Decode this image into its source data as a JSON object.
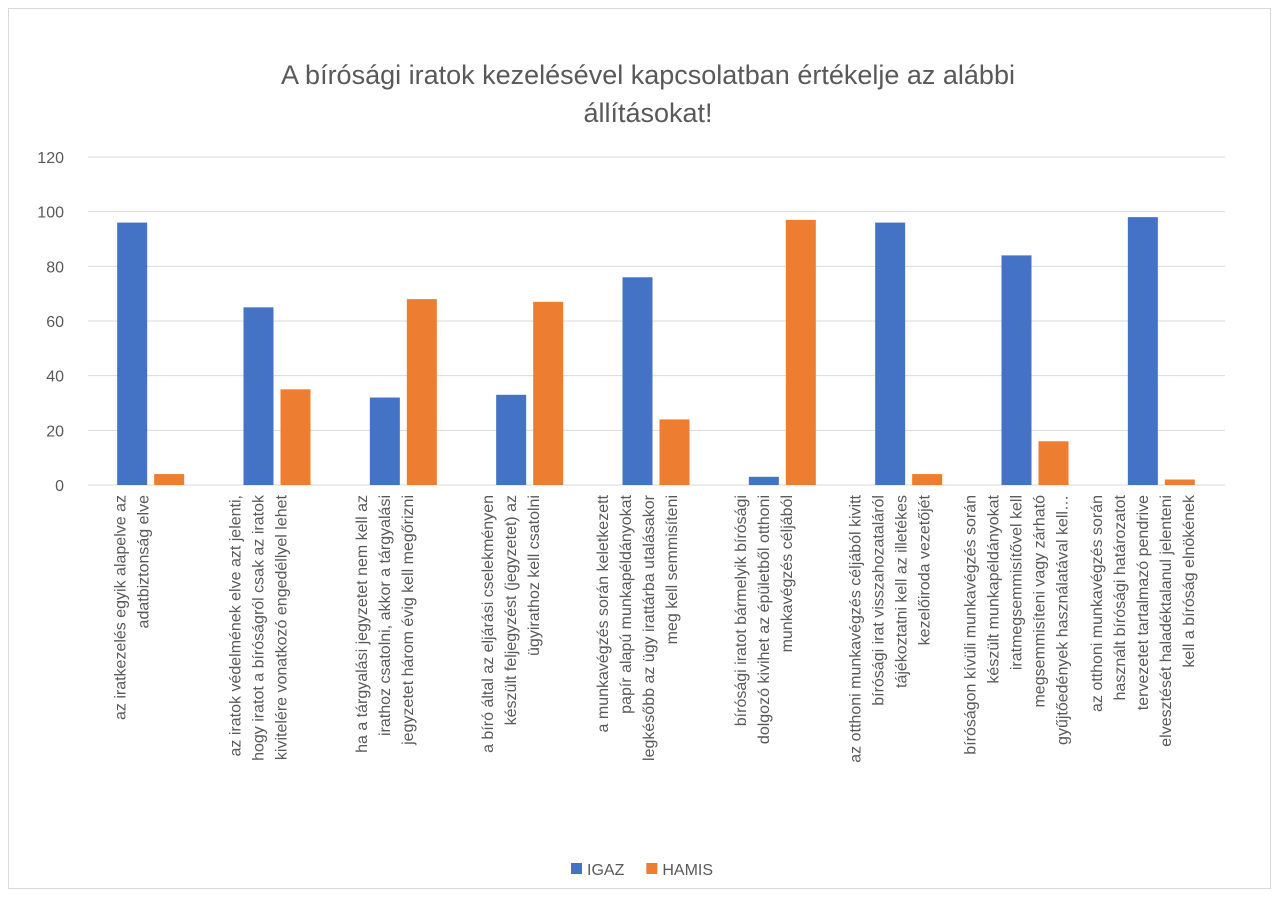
{
  "chart_data": {
    "type": "bar",
    "title": [
      "A bírósági iratok kezelésével kapcsolatban értékelje az alábbi",
      "állításokat!"
    ],
    "categories": [
      [
        "az iratkezelés egyik alapelve az",
        "adatbiztonság elve"
      ],
      [
        "az iratok védelmének elve azt jelenti,",
        "hogy iratot a bíróságról csak az iratok",
        "kivitelére vonatkozó engedéllyel lehet"
      ],
      [
        "ha a tárgyalási jegyzetet nem kell az",
        "irathoz csatolni, akkor a tárgyalási",
        "jegyzetet három évig kell megőrizni"
      ],
      [
        "a bíró által az eljárási cselekményen",
        "készült feljegyzést (jegyzetet) az",
        "ügyirathoz kell csatolni"
      ],
      [
        "a munkavégzés során keletkezett",
        "papír alapú munkapéldányokat",
        "legkésőbb az ügy irattárba utalásakor",
        "meg kell semmisíteni"
      ],
      [
        "bírósági iratot bármelyik bírósági",
        "dolgozó kivihet az épületből otthoni",
        "munkavégzés céljából"
      ],
      [
        "az otthoni munkavégzés céljából kivitt",
        "bírósági irat visszahozataláról",
        "tájékoztatni kell az illetékes",
        "kezelőiroda vezetőjét"
      ],
      [
        "bíróságon kívüli munkavégzés során",
        "készült munkapéldányokat",
        "iratmegsemmisítővel kell",
        "megsemmisíteni vagy zárható",
        "gyűjtőedények használatával kell…"
      ],
      [
        "az otthoni munkavégzés során",
        "használt bírósági határozatot",
        "tervezetet tartalmazó pendrive",
        "elvesztését haladéktalanul jelenteni",
        "kell a bíróság elnökének"
      ]
    ],
    "series": [
      {
        "name": "IGAZ",
        "color": "#4472c4",
        "values": [
          96,
          65,
          32,
          33,
          76,
          3,
          96,
          84,
          98
        ]
      },
      {
        "name": "HAMIS",
        "color": "#ed7d31",
        "values": [
          4,
          35,
          68,
          67,
          24,
          97,
          4,
          16,
          2
        ]
      }
    ],
    "ylim": [
      0,
      120
    ],
    "yticks": [
      0,
      20,
      40,
      60,
      80,
      100,
      120
    ],
    "grid": true,
    "legend": "bottom"
  }
}
